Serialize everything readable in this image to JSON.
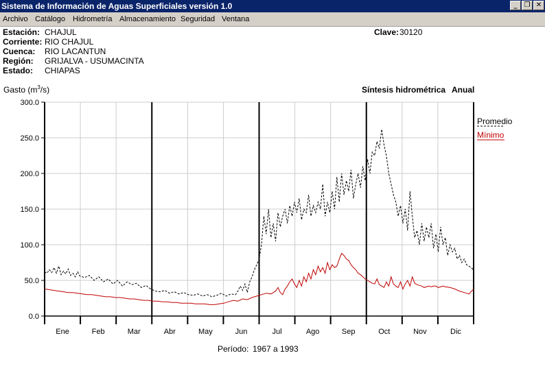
{
  "window": {
    "title": "Sistema de Información de Aguas Superficiales  versión 1.0",
    "btn_min": "_",
    "btn_restore": "❐",
    "btn_close": "✕"
  },
  "menu": [
    "Archivo",
    "Catálogo",
    "Hidrometría",
    "Almacenamiento",
    "Seguridad",
    "Ventana"
  ],
  "station": {
    "estacion_label": "Estación:",
    "estacion": "CHAJUL",
    "corriente_label": "Corriente:",
    "corriente": "RIO CHAJUL",
    "cuenca_label": "Cuenca:",
    "cuenca": "RIO LACANTUN",
    "region_label": "Región:",
    "region": "GRIJALVA - USUMACINTA",
    "estado_label": "Estado:",
    "estado": "CHIAPAS",
    "clave_label": "Clave:",
    "clave": "30120"
  },
  "chart_heading": {
    "ylabel_prefix": "Gasto (m",
    "ylabel_sup": "3",
    "ylabel_suffix": "/s)",
    "title": "Síntesis hidrométrica",
    "subtitle": "Anual"
  },
  "periodo_label": "Período:",
  "periodo": "1967 a 1993",
  "colors": {
    "promedio": "#000000",
    "minimo": "#c00000",
    "titlebar": "#0a246a"
  },
  "chart_data": {
    "type": "line",
    "ylabel": "Gasto (m3/s)",
    "title": "Síntesis hidrométrica",
    "subtitle": "Anual",
    "ylim": [
      0,
      300
    ],
    "yticks": [
      "0.0",
      "50.0",
      "100.0",
      "150.0",
      "200.0",
      "250.0",
      "300.0"
    ],
    "xlim": [
      1,
      365
    ],
    "months": [
      "Ene",
      "Feb",
      "Mar",
      "Abr",
      "May",
      "Jun",
      "Jul",
      "Ago",
      "Sep",
      "Oct",
      "Nov",
      "Dic"
    ],
    "grid": true,
    "legend_position": "right",
    "series": [
      {
        "name": "Promedio",
        "style": "dashed",
        "color": "#000000",
        "x": [
          1,
          3,
          5,
          7,
          9,
          11,
          13,
          15,
          17,
          19,
          21,
          23,
          25,
          27,
          29,
          31,
          35,
          39,
          43,
          47,
          51,
          55,
          59,
          63,
          67,
          71,
          75,
          79,
          83,
          87,
          91,
          95,
          99,
          103,
          107,
          111,
          115,
          119,
          123,
          127,
          131,
          135,
          139,
          143,
          147,
          151,
          155,
          159,
          163,
          165,
          167,
          169,
          171,
          173,
          175,
          177,
          179,
          181,
          183,
          185,
          187,
          189,
          191,
          193,
          195,
          197,
          199,
          201,
          203,
          205,
          207,
          209,
          211,
          213,
          215,
          217,
          219,
          221,
          223,
          225,
          227,
          229,
          231,
          233,
          235,
          237,
          239,
          241,
          243,
          245,
          247,
          249,
          251,
          253,
          255,
          257,
          259,
          261,
          263,
          265,
          267,
          269,
          271,
          273,
          275,
          277,
          279,
          281,
          283,
          285,
          287,
          289,
          291,
          293,
          295,
          297,
          299,
          301,
          303,
          305,
          307,
          309,
          311,
          313,
          315,
          317,
          319,
          321,
          323,
          325,
          327,
          329,
          331,
          333,
          335,
          337,
          339,
          341,
          343,
          345,
          347,
          349,
          351,
          353,
          355,
          357,
          359,
          361,
          363,
          365
        ],
        "y": [
          62,
          60,
          65,
          61,
          68,
          60,
          70,
          58,
          63,
          59,
          66,
          57,
          60,
          55,
          62,
          56,
          54,
          57,
          50,
          55,
          48,
          52,
          45,
          50,
          42,
          48,
          44,
          46,
          40,
          43,
          38,
          35,
          34,
          36,
          32,
          34,
          31,
          33,
          30,
          29,
          31,
          28,
          30,
          27,
          29,
          32,
          28,
          31,
          30,
          35,
          42,
          36,
          45,
          33,
          48,
          55,
          65,
          72,
          80,
          100,
          140,
          115,
          150,
          110,
          130,
          105,
          145,
          125,
          140,
          150,
          130,
          155,
          140,
          160,
          145,
          165,
          135,
          150,
          145,
          170,
          140,
          155,
          145,
          160,
          150,
          185,
          140,
          160,
          145,
          175,
          150,
          195,
          160,
          200,
          170,
          190,
          175,
          205,
          165,
          185,
          200,
          180,
          210,
          190,
          220,
          200,
          230,
          225,
          245,
          235,
          262,
          240,
          225,
          200,
          185,
          170,
          160,
          140,
          155,
          130,
          150,
          120,
          175,
          140,
          110,
          120,
          100,
          130,
          105,
          125,
          110,
          130,
          95,
          115,
          90,
          125,
          100,
          110,
          85,
          100,
          90,
          95,
          80,
          85,
          75,
          80,
          72,
          70,
          68,
          64
        ]
      },
      {
        "name": "Mínimo",
        "style": "solid",
        "color": "#c00000",
        "x": [
          1,
          5,
          9,
          13,
          17,
          21,
          25,
          29,
          33,
          37,
          41,
          45,
          49,
          53,
          57,
          61,
          65,
          69,
          73,
          77,
          81,
          85,
          89,
          93,
          97,
          101,
          105,
          109,
          113,
          117,
          121,
          125,
          129,
          133,
          137,
          141,
          145,
          149,
          153,
          157,
          161,
          165,
          169,
          173,
          177,
          181,
          185,
          189,
          193,
          197,
          199,
          201,
          203,
          205,
          207,
          209,
          211,
          213,
          215,
          217,
          219,
          221,
          223,
          225,
          227,
          229,
          231,
          233,
          235,
          237,
          239,
          241,
          243,
          245,
          247,
          249,
          251,
          253,
          255,
          257,
          259,
          261,
          263,
          265,
          267,
          269,
          271,
          273,
          275,
          277,
          279,
          281,
          283,
          285,
          287,
          289,
          291,
          293,
          295,
          297,
          299,
          301,
          303,
          305,
          307,
          309,
          311,
          313,
          315,
          317,
          319,
          321,
          323,
          325,
          327,
          329,
          331,
          333,
          335,
          337,
          339,
          341,
          345,
          349,
          353,
          357,
          361,
          365
        ],
        "y": [
          38,
          37,
          36,
          35,
          34,
          33,
          33,
          32,
          31,
          30,
          30,
          29,
          28,
          27,
          27,
          26,
          26,
          25,
          24,
          24,
          23,
          22,
          22,
          21,
          21,
          20,
          20,
          19,
          19,
          18,
          18,
          18,
          17,
          17,
          17,
          16,
          16,
          17,
          18,
          20,
          22,
          21,
          24,
          23,
          26,
          28,
          30,
          32,
          31,
          35,
          40,
          33,
          30,
          38,
          42,
          48,
          52,
          45,
          40,
          50,
          42,
          55,
          48,
          60,
          52,
          65,
          58,
          70,
          62,
          68,
          60,
          75,
          65,
          72,
          68,
          70,
          80,
          88,
          85,
          80,
          78,
          72,
          68,
          65,
          60,
          58,
          55,
          52,
          50,
          48,
          46,
          45,
          52,
          44,
          42,
          40,
          48,
          42,
          55,
          45,
          42,
          40,
          48,
          38,
          45,
          50,
          42,
          55,
          46,
          44,
          43,
          42,
          40,
          41,
          42,
          41,
          42,
          42,
          40,
          41,
          42,
          41,
          40,
          38,
          35,
          33,
          31,
          38
        ]
      }
    ]
  }
}
